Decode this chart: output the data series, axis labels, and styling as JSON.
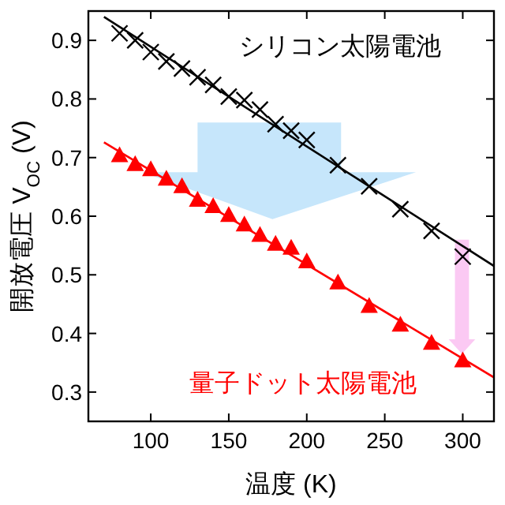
{
  "chart_data": {
    "type": "scatter",
    "xlabel": "温度 (K)",
    "ylabel": "開放電圧 V$_{OC}$ (V)",
    "xlim": [
      60,
      320
    ],
    "ylim": [
      0.25,
      0.95
    ],
    "xticks": [
      100,
      150,
      200,
      250,
      300
    ],
    "yticks": [
      0.3,
      0.4,
      0.5,
      0.6,
      0.7,
      0.8,
      0.9
    ],
    "grid": false,
    "series": [
      {
        "name": "シリコン太陽電池",
        "marker": "cross",
        "color": "#000000",
        "x": [
          80,
          90,
          100,
          110,
          120,
          130,
          140,
          150,
          160,
          170,
          180,
          190,
          200,
          220,
          240,
          260,
          280,
          300
        ],
        "values": [
          0.912,
          0.9,
          0.88,
          0.864,
          0.852,
          0.837,
          0.824,
          0.804,
          0.798,
          0.782,
          0.757,
          0.746,
          0.73,
          0.687,
          0.651,
          0.612,
          0.575,
          0.531
        ]
      },
      {
        "type": "line",
        "marker": "none",
        "color": "#000000",
        "x": [
          70,
          320
        ],
        "values": [
          0.94,
          0.515
        ]
      },
      {
        "name": "量子ドット太陽電池",
        "marker": "triangle",
        "color": "#ff0000",
        "x": [
          80,
          90,
          100,
          110,
          120,
          130,
          140,
          150,
          160,
          170,
          180,
          190,
          200,
          220,
          240,
          260,
          280,
          300
        ],
        "values": [
          0.703,
          0.688,
          0.679,
          0.663,
          0.65,
          0.627,
          0.616,
          0.601,
          0.585,
          0.567,
          0.552,
          0.545,
          0.522,
          0.486,
          0.446,
          0.414,
          0.383,
          0.353
        ]
      },
      {
        "type": "line",
        "marker": "none",
        "color": "#ff0000",
        "x": [
          70,
          320
        ],
        "values": [
          0.726,
          0.325
        ]
      }
    ]
  }
}
